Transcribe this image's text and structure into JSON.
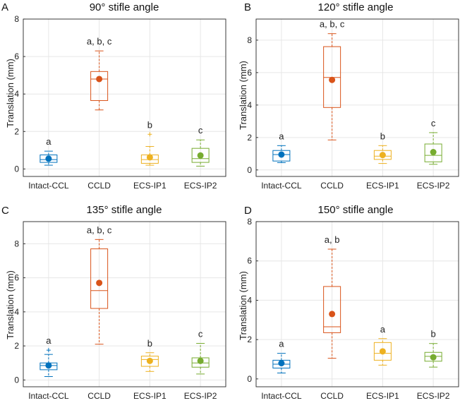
{
  "colors": {
    "Intact-CCL": "#0072BD",
    "CCLD": "#D95319",
    "ECS-IP1": "#EDB120",
    "ECS-IP2": "#77AC30",
    "grid": "#e6e6e6",
    "axis": "#262626"
  },
  "chart_data": [
    {
      "type": "box",
      "panel": "A",
      "title": "90° stifle angle",
      "ylabel": "Translation (mm)",
      "ylim": [
        -0.4,
        8
      ],
      "yticks": [
        0,
        2,
        4,
        6,
        8
      ],
      "categories": [
        "Intact-CCL",
        "CCLD",
        "ECS-IP1",
        "ECS-IP2"
      ],
      "boxes": [
        {
          "min": 0.2,
          "q1": 0.35,
          "median": 0.5,
          "q3": 0.75,
          "max": 0.95,
          "mean": 0.55,
          "outliers": [],
          "letter": "a"
        },
        {
          "min": 3.15,
          "q1": 3.65,
          "median": 4.8,
          "q3": 5.2,
          "max": 6.3,
          "mean": 4.8,
          "outliers": [],
          "letter": "a, b, c"
        },
        {
          "min": 0.2,
          "q1": 0.3,
          "median": 0.5,
          "q3": 0.75,
          "max": 1.2,
          "mean": 0.62,
          "outliers": [
            1.85
          ],
          "letter": "b"
        },
        {
          "min": 0.15,
          "q1": 0.35,
          "median": 0.55,
          "q3": 1.1,
          "max": 1.55,
          "mean": 0.72,
          "outliers": [],
          "letter": "c"
        }
      ]
    },
    {
      "type": "box",
      "panel": "B",
      "title": "120° stifle angle",
      "ylabel": "Translation (mm)",
      "ylim": [
        -0.4,
        9.3
      ],
      "yticks": [
        0,
        2,
        4,
        6,
        8
      ],
      "categories": [
        "Intact-CCL",
        "CCLD",
        "ECS-IP1",
        "ECS-IP2"
      ],
      "boxes": [
        {
          "min": 0.45,
          "q1": 0.55,
          "median": 0.95,
          "q3": 1.2,
          "max": 1.5,
          "mean": 0.95,
          "outliers": [],
          "letter": "a"
        },
        {
          "min": 1.85,
          "q1": 3.85,
          "median": 5.7,
          "q3": 7.6,
          "max": 8.4,
          "mean": 5.55,
          "outliers": [],
          "letter": "a, b, c"
        },
        {
          "min": 0.4,
          "q1": 0.65,
          "median": 0.85,
          "q3": 1.2,
          "max": 1.5,
          "mean": 0.92,
          "outliers": [],
          "letter": "b"
        },
        {
          "min": 0.35,
          "q1": 0.5,
          "median": 0.9,
          "q3": 1.6,
          "max": 2.3,
          "mean": 1.1,
          "outliers": [],
          "letter": "c"
        }
      ]
    },
    {
      "type": "box",
      "panel": "C",
      "title": "135° stifle angle",
      "ylabel": "Translation (mm)",
      "ylim": [
        -0.4,
        9.3
      ],
      "yticks": [
        0,
        2,
        4,
        6,
        8
      ],
      "categories": [
        "Intact-CCL",
        "CCLD",
        "ECS-IP1",
        "ECS-IP2"
      ],
      "boxes": [
        {
          "min": 0.2,
          "q1": 0.6,
          "median": 0.85,
          "q3": 1.0,
          "max": 1.5,
          "mean": 0.85,
          "outliers": [
            1.75
          ],
          "letter": "a"
        },
        {
          "min": 2.1,
          "q1": 4.2,
          "median": 5.25,
          "q3": 7.7,
          "max": 8.25,
          "mean": 5.7,
          "outliers": [],
          "letter": "a, b, c"
        },
        {
          "min": 0.5,
          "q1": 0.8,
          "median": 1.2,
          "q3": 1.4,
          "max": 1.6,
          "mean": 1.12,
          "outliers": [],
          "letter": "b"
        },
        {
          "min": 0.35,
          "q1": 0.75,
          "median": 1.0,
          "q3": 1.3,
          "max": 2.15,
          "mean": 1.12,
          "outliers": [],
          "letter": "c"
        }
      ]
    },
    {
      "type": "box",
      "panel": "D",
      "title": "150° stifle angle",
      "ylabel": "Translation (mm)",
      "ylim": [
        -0.4,
        8
      ],
      "yticks": [
        0,
        2,
        4,
        6,
        8
      ],
      "categories": [
        "Intact-CCL",
        "CCLD",
        "ECS-IP1",
        "ECS-IP2"
      ],
      "boxes": [
        {
          "min": 0.3,
          "q1": 0.55,
          "median": 0.75,
          "q3": 0.95,
          "max": 1.3,
          "mean": 0.8,
          "outliers": [],
          "letter": "a"
        },
        {
          "min": 1.05,
          "q1": 2.35,
          "median": 2.65,
          "q3": 4.7,
          "max": 6.6,
          "mean": 3.3,
          "outliers": [],
          "letter": "a, b"
        },
        {
          "min": 0.7,
          "q1": 0.95,
          "median": 1.3,
          "q3": 1.85,
          "max": 2.05,
          "mean": 1.4,
          "outliers": [],
          "letter": "a"
        },
        {
          "min": 0.6,
          "q1": 0.9,
          "median": 1.15,
          "q3": 1.35,
          "max": 1.8,
          "mean": 1.1,
          "outliers": [],
          "letter": "b"
        }
      ]
    }
  ]
}
